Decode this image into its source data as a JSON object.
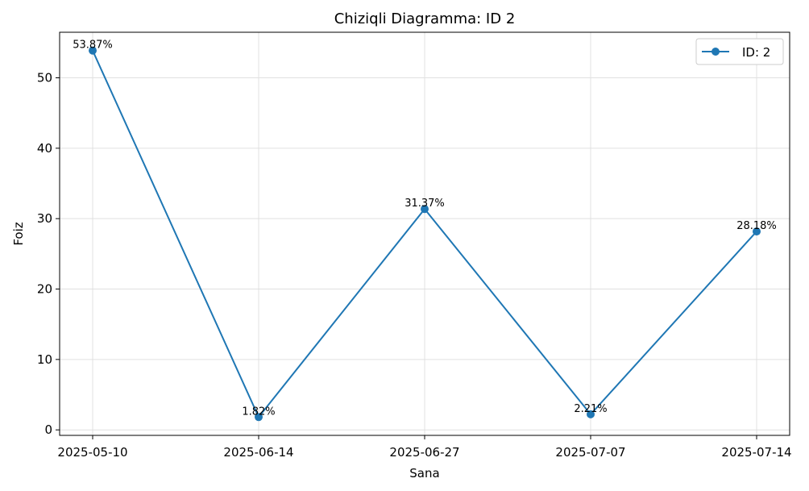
{
  "chart_data": {
    "type": "line",
    "title": "Chiziqli Diagramma: ID 2",
    "xlabel": "Sana",
    "ylabel": "Foiz",
    "x": [
      "2025-05-10",
      "2025-06-14",
      "2025-06-27",
      "2025-07-07",
      "2025-07-14"
    ],
    "series": [
      {
        "name": "ID: 2",
        "values": [
          53.87,
          1.82,
          31.37,
          2.21,
          28.18
        ],
        "labels": [
          "53.87%",
          "1.82%",
          "31.37%",
          "2.21%",
          "28.18%"
        ],
        "color": "#1f77b4"
      }
    ],
    "yticks": [
      0,
      10,
      20,
      30,
      40,
      50
    ],
    "ylim": [
      -0.78,
      56.47
    ],
    "grid": true,
    "legend_position": "top-right"
  }
}
